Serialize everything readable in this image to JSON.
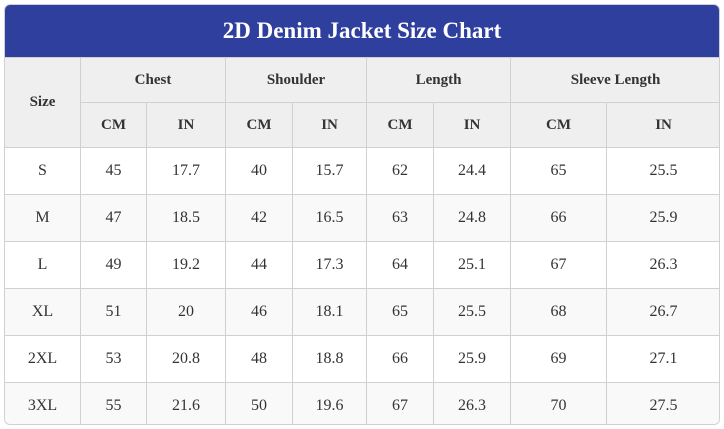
{
  "title": "2D Denim Jacket Size Chart",
  "header": {
    "size": "Size",
    "groups": [
      "Chest",
      "Shoulder",
      "Length",
      "Sleeve Length"
    ],
    "units": [
      "CM",
      "IN",
      "CM",
      "IN",
      "CM",
      "IN",
      "CM",
      "IN"
    ]
  },
  "rows": [
    [
      "S",
      "45",
      "17.7",
      "40",
      "15.7",
      "62",
      "24.4",
      "65",
      "25.5"
    ],
    [
      "M",
      "47",
      "18.5",
      "42",
      "16.5",
      "63",
      "24.8",
      "66",
      "25.9"
    ],
    [
      "L",
      "49",
      "19.2",
      "44",
      "17.3",
      "64",
      "25.1",
      "67",
      "26.3"
    ],
    [
      "XL",
      "51",
      "20",
      "46",
      "18.1",
      "65",
      "25.5",
      "68",
      "26.7"
    ],
    [
      "2XL",
      "53",
      "20.8",
      "48",
      "18.8",
      "66",
      "25.9",
      "69",
      "27.1"
    ],
    [
      "3XL",
      "55",
      "21.6",
      "50",
      "19.6",
      "67",
      "26.3",
      "70",
      "27.5"
    ]
  ],
  "colors": {
    "title_background": "#2f3f9e",
    "title_text": "#ffffff",
    "header_background": "#efefef",
    "border": "#d0d0d0"
  }
}
